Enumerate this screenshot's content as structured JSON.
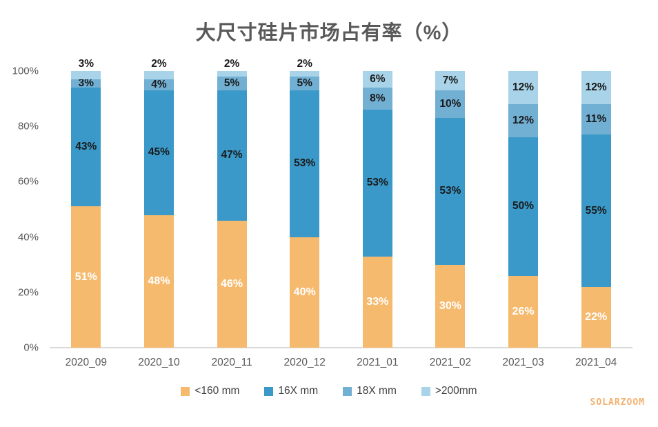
{
  "title": "大尺寸硅片市场占有率（%）",
  "watermark": "SOLARZOOM",
  "colors": {
    "title_text": "#595959",
    "axis_text": "#595959",
    "baseline": "#d9d9d9",
    "watermark_text": "#f2b06e",
    "data_label_dark": "#1a1a1a",
    "data_label_light": "#ffffff"
  },
  "chart_data": {
    "type": "bar",
    "stacked": true,
    "title": "大尺寸硅片市场占有率（%）",
    "categories": [
      "2020_09",
      "2020_10",
      "2020_11",
      "2020_12",
      "2021_01",
      "2021_02",
      "2021_03",
      "2021_04"
    ],
    "series": [
      {
        "name": "<160 mm",
        "color": "#f6ba6e",
        "label_style": "white",
        "values": [
          51,
          48,
          46,
          40,
          33,
          30,
          26,
          22
        ]
      },
      {
        "name": "16X mm",
        "color": "#3a99c9",
        "label_style": "dark",
        "values": [
          43,
          45,
          47,
          53,
          53,
          53,
          50,
          55
        ]
      },
      {
        "name": "18X mm",
        "color": "#71afd3",
        "label_style": "dark",
        "values": [
          3,
          4,
          5,
          5,
          8,
          10,
          12,
          11
        ]
      },
      {
        "name": ">200mm",
        "color": "#a9d3e8",
        "label_style": "dark",
        "values": [
          3,
          2,
          2,
          2,
          6,
          7,
          12,
          12
        ]
      }
    ],
    "data_label_format": "{v}%",
    "yticks": [
      {
        "value": 0,
        "label": "0%"
      },
      {
        "value": 20,
        "label": "20%"
      },
      {
        "value": 40,
        "label": "40%"
      },
      {
        "value": 60,
        "label": "60%"
      },
      {
        "value": 80,
        "label": "80%"
      },
      {
        "value": 100,
        "label": "100%"
      }
    ],
    "ylim": [
      0,
      100
    ],
    "grid": false,
    "legend_position": "bottom"
  }
}
